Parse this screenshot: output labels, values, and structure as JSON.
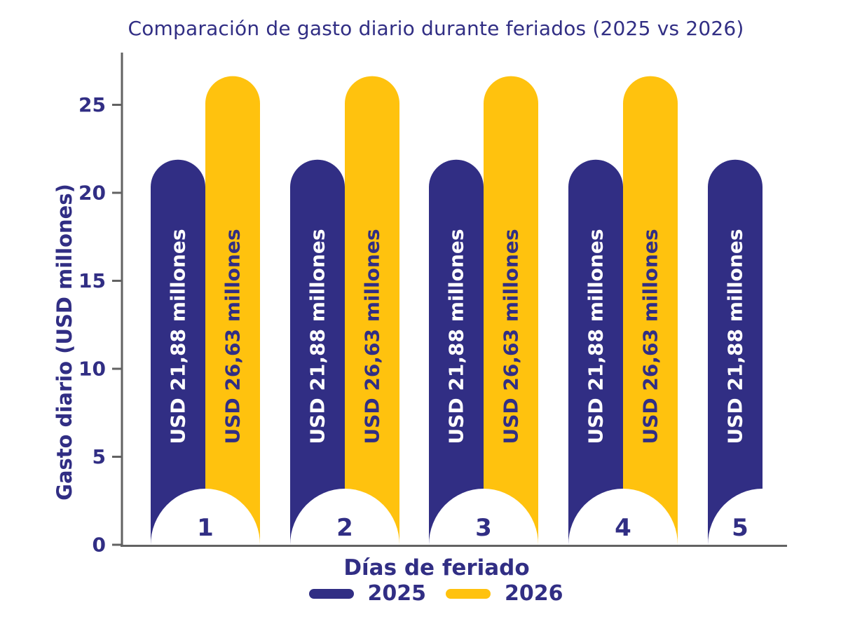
{
  "chart_data": {
    "type": "bar",
    "title": "Comparación de gasto diario durante feriados (2025 vs 2026)",
    "xlabel": "Días de feriado",
    "ylabel": "Gasto diario (USD millones)",
    "categories": [
      "1",
      "2",
      "3",
      "4",
      "5"
    ],
    "series": [
      {
        "name": "2025",
        "color": "#312e84",
        "label_color": "#ffffff",
        "values": [
          21.88,
          21.88,
          21.88,
          21.88,
          21.88
        ],
        "bar_labels": [
          "USD 21,88 millones",
          "USD 21,88 millones",
          "USD 21,88 millones",
          "USD 21,88 millones",
          "USD 21,88 millones"
        ]
      },
      {
        "name": "2026",
        "color": "#ffc20e",
        "label_color": "#312e84",
        "values": [
          26.63,
          26.63,
          26.63,
          26.63,
          null
        ],
        "bar_labels": [
          "USD 26,63 millones",
          "USD 26,63 millones",
          "USD 26,63 millones",
          "USD 26,63 millones",
          null
        ]
      }
    ],
    "yticks": [
      0,
      5,
      10,
      15,
      20,
      25
    ],
    "ylim": [
      0,
      27.5
    ],
    "grid": false,
    "legend_position": "bottom",
    "bar_style": "rounded-capsule-top-with-arched-base"
  },
  "legend": {
    "items": [
      {
        "label": "2025",
        "color": "#312e84"
      },
      {
        "label": "2026",
        "color": "#ffc20e"
      }
    ]
  },
  "colors": {
    "accent_blue": "#312e84",
    "accent_yellow": "#ffc20e",
    "axis": "#626262",
    "background": "#ffffff"
  }
}
